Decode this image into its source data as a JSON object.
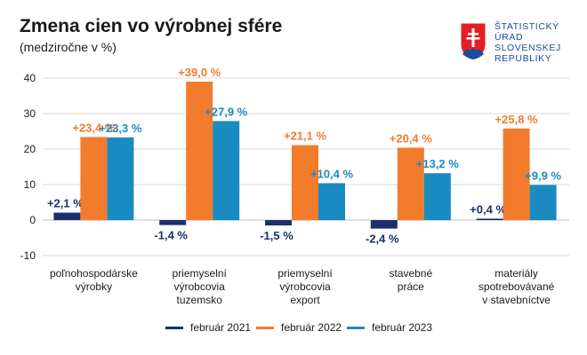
{
  "title": "Zmena cien vo výrobnej sfére",
  "subtitle": "(medziročne v %)",
  "logo": {
    "lines": [
      "ŠTATISTICKÝ",
      "ÚRAD",
      "SLOVENSKEJ",
      "REPUBLIKY"
    ]
  },
  "colors": {
    "feb2021": "#1b2f6b",
    "feb2022": "#f37b2c",
    "feb2023": "#1a8bc0",
    "grid": "#d9d9d9",
    "axis_text": "#1a1a1a"
  },
  "chart_data": {
    "type": "bar",
    "title": "Zmena cien vo výrobnej sfére",
    "subtitle": "(medziročne v %)",
    "categories": [
      [
        "poľnohospodárske",
        "výrobky"
      ],
      [
        "priemyselní",
        "výrobcovia",
        "tuzemsko"
      ],
      [
        "priemyselní",
        "výrobcovia",
        "export"
      ],
      [
        "stavebné",
        "práce"
      ],
      [
        "materiály",
        "spotrebovávané",
        "v stavebníctve"
      ]
    ],
    "series": [
      {
        "name": "február 2021",
        "values": [
          2.1,
          -1.4,
          -1.5,
          -2.4,
          0.4
        ],
        "labels": [
          "+2,1 %",
          "-1,4 %",
          "-1,5 %",
          "-2,4 %",
          "+0,4 %"
        ]
      },
      {
        "name": "február 2022",
        "values": [
          23.4,
          39.0,
          21.1,
          20.4,
          25.8
        ],
        "labels": [
          "+23,4 %",
          "+39,0 %",
          "+21,1 %",
          "+20,4 %",
          "+25,8 %"
        ]
      },
      {
        "name": "február 2023",
        "values": [
          23.3,
          27.9,
          10.4,
          13.2,
          9.9
        ],
        "labels": [
          "+23,3 %",
          "+27,9 %",
          "+10,4 %",
          "+13,2 %",
          "+9,9 %"
        ]
      }
    ],
    "ylim": [
      -10,
      40
    ],
    "yticks": [
      40,
      30,
      20,
      10,
      0,
      -10
    ],
    "ytick_labels": [
      "40",
      "30",
      "20",
      "10",
      "0",
      "-10"
    ],
    "grid": true,
    "legend_position": "bottom"
  }
}
